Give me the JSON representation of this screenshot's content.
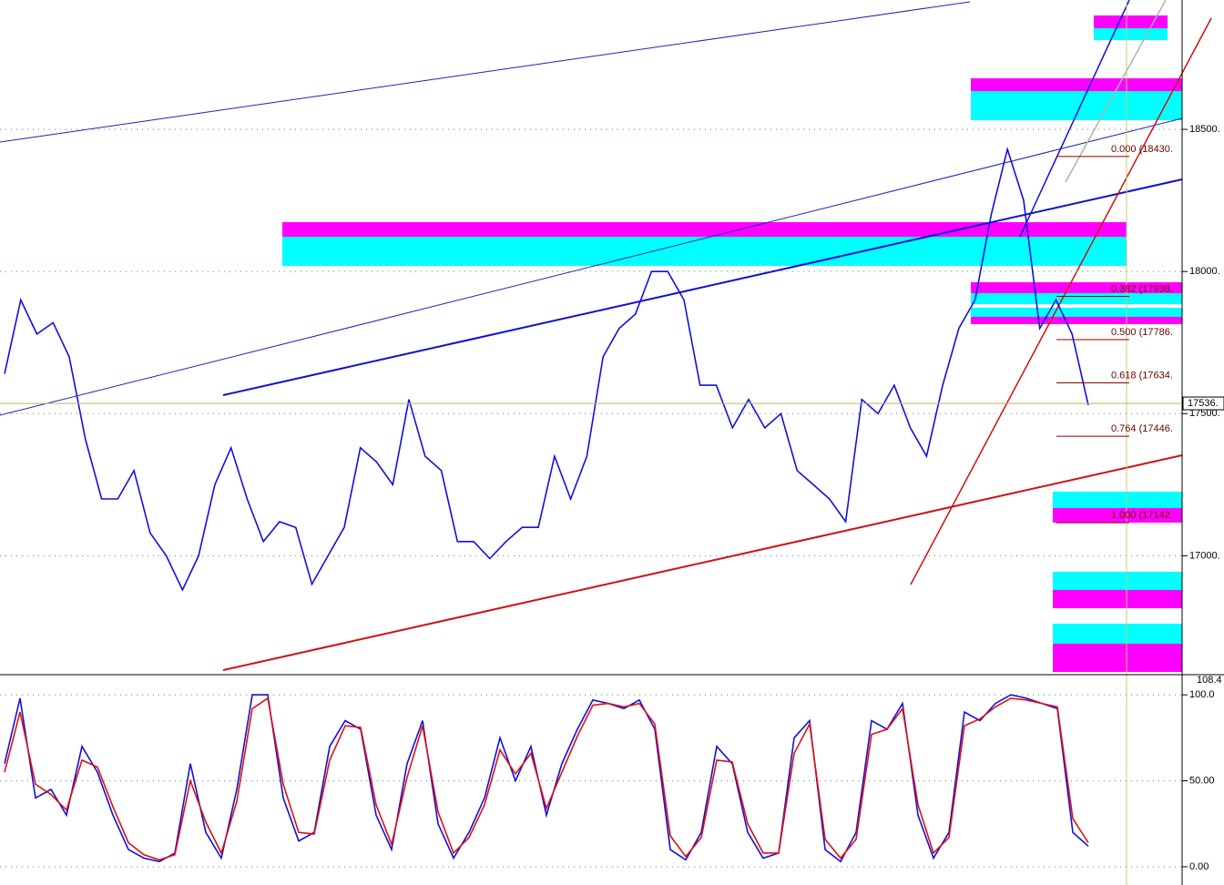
{
  "chart_data": [
    {
      "type": "line",
      "ylim": [
        16585,
        18955
      ],
      "yticks": [
        {
          "value": 17000,
          "label": "17000."
        },
        {
          "value": 17500,
          "label": "17500."
        },
        {
          "value": 18000,
          "label": "18000."
        },
        {
          "value": 18500,
          "label": "18500."
        }
      ],
      "grid": true,
      "last": {
        "value": 17536,
        "label": "17536."
      },
      "fib_levels": [
        {
          "value": 18430,
          "label": "0.000 (18430."
        },
        {
          "value": 17938,
          "label": "0.382 (17938."
        },
        {
          "value": 17786,
          "label": "0.500 (17786."
        },
        {
          "value": 17634,
          "label": "0.618 (17634."
        },
        {
          "value": 17446,
          "label": "0.764 (17446."
        },
        {
          "value": 17142,
          "label": "1.000 (17142."
        }
      ],
      "series": [
        {
          "color": "#1010e0",
          "values": [
            17640,
            17900,
            17780,
            17820,
            17700,
            17410,
            17200,
            17200,
            17300,
            17080,
            17000,
            16880,
            17000,
            17250,
            17380,
            17200,
            17050,
            17120,
            17100,
            16900,
            17000,
            17100,
            17380,
            17330,
            17250,
            17550,
            17350,
            17300,
            17050,
            17050,
            16990,
            17050,
            17100,
            17100,
            17350,
            17200,
            17350,
            17700,
            17800,
            17850,
            18000,
            18000,
            17900,
            17600,
            17600,
            17450,
            17550,
            17450,
            17500,
            17300,
            17250,
            17200,
            17120,
            17550,
            17500,
            17600,
            17450,
            17350,
            17600,
            17800,
            17900,
            18200,
            18430,
            18250,
            17800,
            17900,
            17780,
            17530
          ]
        }
      ]
    },
    {
      "type": "line",
      "ylim": [
        -10.6,
        111.2
      ],
      "yticks": [
        {
          "value": 0,
          "label": "0.00"
        },
        {
          "value": 50,
          "label": "50.00"
        },
        {
          "value": 100,
          "label": "100.0"
        }
      ],
      "grid": true,
      "top_label": "108.4",
      "series": [
        {
          "color": "#1010e0",
          "values": [
            60,
            98,
            40,
            45,
            30,
            70,
            55,
            30,
            10,
            5,
            3,
            8,
            60,
            20,
            5,
            45,
            100,
            100,
            40,
            15,
            20,
            70,
            85,
            80,
            30,
            10,
            60,
            85,
            25,
            5,
            20,
            40,
            75,
            50,
            70,
            30,
            60,
            80,
            97,
            95,
            92,
            97,
            80,
            10,
            4,
            20,
            70,
            60,
            20,
            5,
            8,
            75,
            85,
            10,
            3,
            20,
            85,
            80,
            95,
            30,
            5,
            20,
            90,
            85,
            95,
            100,
            98,
            95,
            92,
            20,
            12
          ]
        },
        {
          "color": "#e01010",
          "values": [
            55,
            90,
            48,
            42,
            33,
            62,
            58,
            35,
            14,
            7,
            4,
            7,
            50,
            26,
            8,
            38,
            92,
            98,
            48,
            20,
            19,
            62,
            82,
            81,
            36,
            13,
            52,
            82,
            32,
            8,
            17,
            36,
            68,
            54,
            66,
            34,
            55,
            76,
            94,
            95,
            93,
            95,
            83,
            18,
            6,
            17,
            62,
            61,
            25,
            8,
            8,
            66,
            83,
            16,
            5,
            16,
            77,
            80,
            92,
            36,
            8,
            17,
            82,
            86,
            93,
            98,
            97,
            95,
            93,
            28,
            14
          ]
        }
      ]
    }
  ]
}
